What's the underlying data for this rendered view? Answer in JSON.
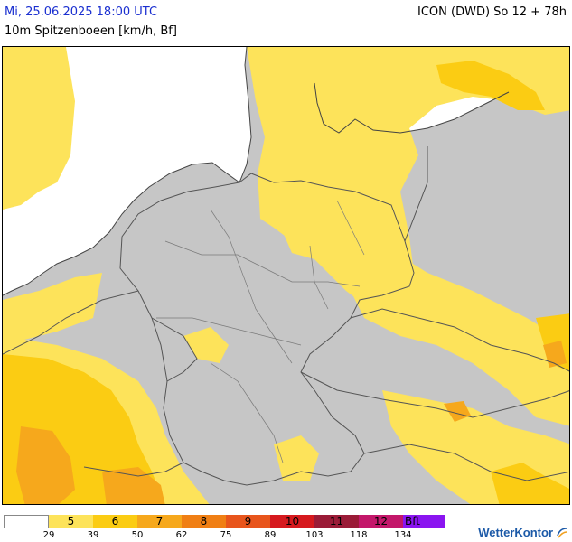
{
  "header": {
    "datetime": "Mi, 25.06.2025 18:00 UTC",
    "model": "ICON (DWD) So 12 + 78h",
    "parameter": "10m Spitzenboeen [km/h, Bf]"
  },
  "legend": {
    "segments": [
      {
        "label": "",
        "color": "#ffffff"
      },
      {
        "label": "5",
        "color": "#fde35a"
      },
      {
        "label": "6",
        "color": "#fbcc13"
      },
      {
        "label": "7",
        "color": "#f6a81c"
      },
      {
        "label": "8",
        "color": "#f07f14"
      },
      {
        "label": "9",
        "color": "#e8551c"
      },
      {
        "label": "10",
        "color": "#d6191e"
      },
      {
        "label": "11",
        "color": "#9a1b37"
      },
      {
        "label": "12",
        "color": "#c3176a"
      },
      {
        "label": "Bft",
        "color": "#8a14f0"
      }
    ],
    "ticks": [
      "29",
      "39",
      "50",
      "62",
      "75",
      "89",
      "103",
      "118",
      "134"
    ]
  },
  "brand": {
    "name": "WetterKontor"
  },
  "colors": {
    "land": "#c6c6c6",
    "sea": "#ffffff",
    "border": "#555555",
    "gust_5": "#fde35a",
    "gust_6": "#fbcc13",
    "gust_7": "#f6a81c"
  }
}
